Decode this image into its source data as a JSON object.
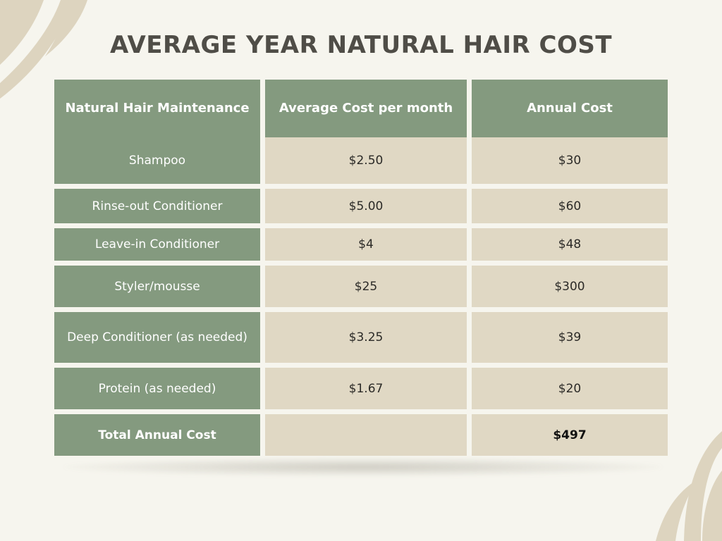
{
  "title": "AVERAGE YEAR NATURAL HAIR COST",
  "table": {
    "headers": [
      "Natural Hair Maintenance",
      "Average Cost per month",
      "Annual Cost"
    ],
    "rows": [
      {
        "item": "Shampoo",
        "monthly": "$2.50",
        "annual": "$30"
      },
      {
        "item": "Rinse-out Conditioner",
        "monthly": "$5.00",
        "annual": "$60"
      },
      {
        "item": "Leave-in Conditioner",
        "monthly": "$4",
        "annual": "$48"
      },
      {
        "item": "Styler/mousse",
        "monthly": "$25",
        "annual": "$300"
      },
      {
        "item": "Deep Conditioner (as needed)",
        "monthly": "$3.25",
        "annual": "$39"
      },
      {
        "item": "Protein (as needed)",
        "monthly": "$1.67",
        "annual": "$20"
      }
    ],
    "total": {
      "label": "Total Annual Cost",
      "monthly": "",
      "annual": "$497"
    }
  },
  "colors": {
    "background": "#f6f5ee",
    "header_green": "#849a7f",
    "cell_beige": "#e0d8c4",
    "title_text": "#4f4d47",
    "decor_leaf": "#ddd4bf"
  },
  "decorations": [
    "leaf-decoration-top-left",
    "leaf-decoration-bottom-right"
  ]
}
